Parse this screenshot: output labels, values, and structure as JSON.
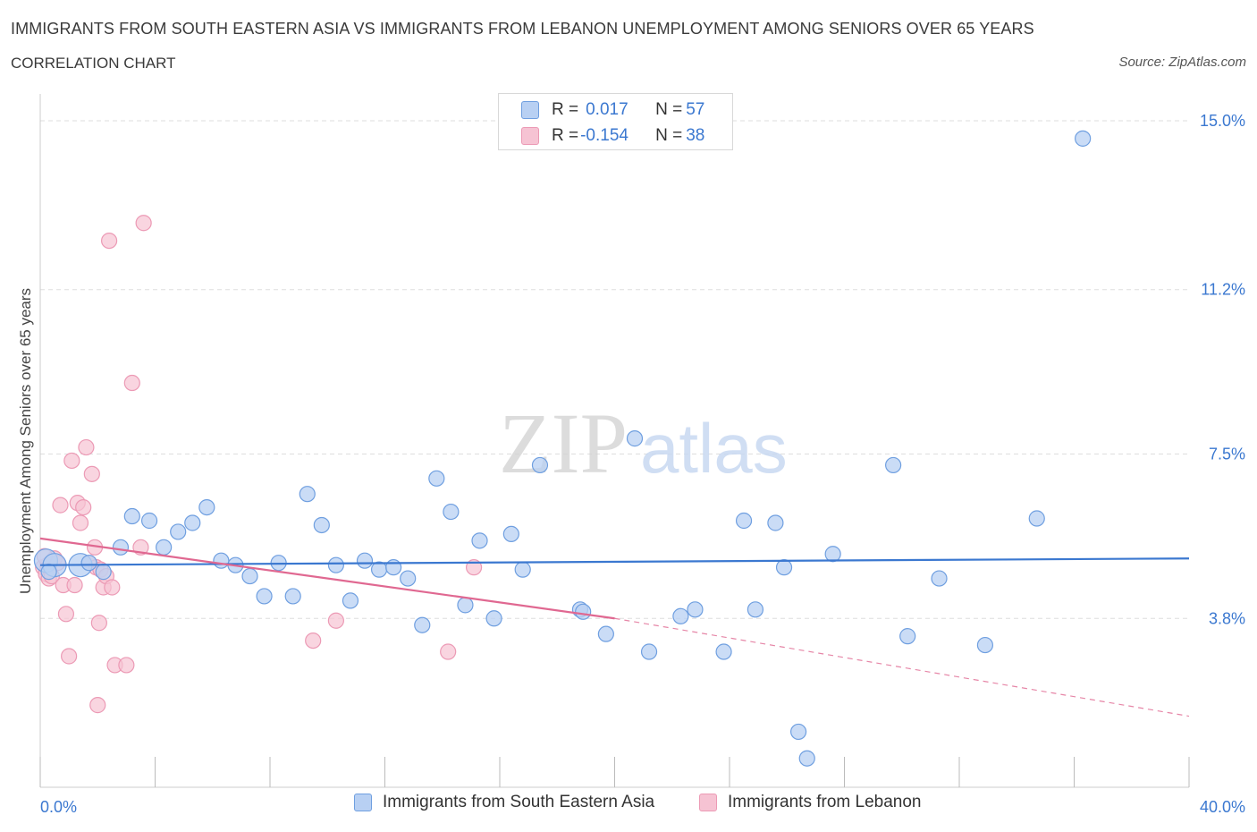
{
  "title": "IMMIGRANTS FROM SOUTH EASTERN ASIA VS IMMIGRANTS FROM LEBANON UNEMPLOYMENT AMONG SENIORS OVER 65 YEARS",
  "subtitle": "CORRELATION CHART",
  "source": "Source: ZipAtlas.com",
  "watermark": {
    "zip": "ZIP",
    "atlas": "atlas"
  },
  "colors": {
    "blue": "#3b78d0",
    "blue_fill": "#b8d0f3",
    "blue_stroke": "#6f9fe0",
    "pink": "#e06891",
    "pink_fill": "#f6c3d3",
    "pink_stroke": "#ec9ab5",
    "grid": "#dddddd",
    "axis_label": "#3b78d0"
  },
  "legend_top": {
    "rows": [
      {
        "r_label": "R = ",
        "r_value": "0.017",
        "n_label": "N = ",
        "n_value": "57",
        "color": "blue"
      },
      {
        "r_label": "R = ",
        "r_value": "-0.154",
        "n_label": "N = ",
        "n_value": "38",
        "color": "pink"
      }
    ]
  },
  "legend_bottom": [
    {
      "label": "Immigrants from South Eastern Asia",
      "color": "blue"
    },
    {
      "label": "Immigrants from Lebanon",
      "color": "pink"
    }
  ],
  "chart_data": {
    "type": "scatter",
    "title": "IMMIGRANTS FROM SOUTH EASTERN ASIA VS IMMIGRANTS FROM LEBANON UNEMPLOYMENT AMONG SENIORS OVER 65 YEARS",
    "subtitle": "CORRELATION CHART",
    "xlabel": "",
    "ylabel": "Unemployment Among Seniors over 65 years",
    "xlim": [
      0,
      40
    ],
    "ylim": [
      0,
      15
    ],
    "x_tick_labels": [
      "0.0%",
      "40.0%"
    ],
    "y_ticks": [
      3.8,
      7.5,
      11.2,
      15.0
    ],
    "y_tick_labels": [
      "3.8%",
      "7.5%",
      "11.2%",
      "15.0%"
    ],
    "grid": true,
    "legend_placement": "top-center and bottom",
    "series": [
      {
        "name": "Immigrants from South Eastern Asia",
        "color": "#3b78d0",
        "r": 0.017,
        "n": 57,
        "trend": {
          "x": [
            0,
            40
          ],
          "y": [
            5.0,
            5.15
          ]
        },
        "points": [
          [
            0.2,
            5.1
          ],
          [
            0.5,
            5.0
          ],
          [
            1.4,
            5.0
          ],
          [
            1.7,
            5.05
          ],
          [
            2.2,
            4.85
          ],
          [
            2.8,
            5.4
          ],
          [
            3.2,
            6.1
          ],
          [
            3.8,
            6.0
          ],
          [
            4.3,
            5.4
          ],
          [
            4.8,
            5.75
          ],
          [
            5.3,
            5.95
          ],
          [
            5.8,
            6.3
          ],
          [
            6.3,
            5.1
          ],
          [
            6.8,
            5.0
          ],
          [
            7.3,
            4.75
          ],
          [
            7.8,
            4.3
          ],
          [
            8.3,
            5.05
          ],
          [
            8.8,
            4.3
          ],
          [
            9.3,
            6.6
          ],
          [
            9.8,
            5.9
          ],
          [
            10.3,
            5.0
          ],
          [
            10.8,
            4.2
          ],
          [
            11.3,
            5.1
          ],
          [
            11.8,
            4.9
          ],
          [
            12.3,
            4.95
          ],
          [
            12.8,
            4.7
          ],
          [
            13.3,
            3.65
          ],
          [
            13.8,
            6.95
          ],
          [
            14.3,
            6.2
          ],
          [
            14.8,
            4.1
          ],
          [
            15.3,
            5.55
          ],
          [
            15.8,
            3.8
          ],
          [
            16.4,
            5.7
          ],
          [
            16.8,
            4.9
          ],
          [
            17.4,
            7.25
          ],
          [
            18.8,
            4.0
          ],
          [
            18.9,
            3.95
          ],
          [
            19.7,
            3.45
          ],
          [
            20.7,
            7.85
          ],
          [
            21.2,
            3.05
          ],
          [
            22.3,
            3.85
          ],
          [
            22.8,
            4.0
          ],
          [
            23.8,
            3.05
          ],
          [
            24.5,
            6.0
          ],
          [
            24.9,
            4.0
          ],
          [
            25.6,
            5.95
          ],
          [
            25.9,
            4.95
          ],
          [
            26.4,
            1.25
          ],
          [
            26.7,
            0.65
          ],
          [
            27.6,
            5.25
          ],
          [
            29.7,
            7.25
          ],
          [
            30.2,
            3.4
          ],
          [
            31.3,
            4.7
          ],
          [
            32.9,
            3.2
          ],
          [
            34.7,
            6.05
          ],
          [
            36.3,
            14.6
          ],
          [
            0.3,
            4.85
          ]
        ]
      },
      {
        "name": "Immigrants from Lebanon",
        "color": "#e06891",
        "r": -0.154,
        "n": 38,
        "trend": {
          "x": [
            0,
            20
          ],
          "y": [
            5.6,
            3.8
          ]
        },
        "trend_dashed": {
          "x": [
            20,
            40
          ],
          "y": [
            3.8,
            1.6
          ]
        },
        "points": [
          [
            0.1,
            4.95
          ],
          [
            0.2,
            4.8
          ],
          [
            0.25,
            5.0
          ],
          [
            0.3,
            4.7
          ],
          [
            0.4,
            4.75
          ],
          [
            0.5,
            5.15
          ],
          [
            0.6,
            5.05
          ],
          [
            0.7,
            6.35
          ],
          [
            0.8,
            4.55
          ],
          [
            0.9,
            3.9
          ],
          [
            1.0,
            2.95
          ],
          [
            1.1,
            7.35
          ],
          [
            1.2,
            4.55
          ],
          [
            1.3,
            6.4
          ],
          [
            1.4,
            5.95
          ],
          [
            1.5,
            6.3
          ],
          [
            1.6,
            7.65
          ],
          [
            1.7,
            5.05
          ],
          [
            1.8,
            7.05
          ],
          [
            1.9,
            5.4
          ],
          [
            1.95,
            4.95
          ],
          [
            2.0,
            1.85
          ],
          [
            2.05,
            3.7
          ],
          [
            2.1,
            4.9
          ],
          [
            2.2,
            4.5
          ],
          [
            2.3,
            4.75
          ],
          [
            2.4,
            12.3
          ],
          [
            2.5,
            4.5
          ],
          [
            2.6,
            2.75
          ],
          [
            3.0,
            2.75
          ],
          [
            3.2,
            9.1
          ],
          [
            3.5,
            5.4
          ],
          [
            3.6,
            12.7
          ],
          [
            9.5,
            3.3
          ],
          [
            10.3,
            3.75
          ],
          [
            14.2,
            3.05
          ],
          [
            15.1,
            4.95
          ],
          [
            0.15,
            5.2
          ]
        ]
      }
    ]
  }
}
